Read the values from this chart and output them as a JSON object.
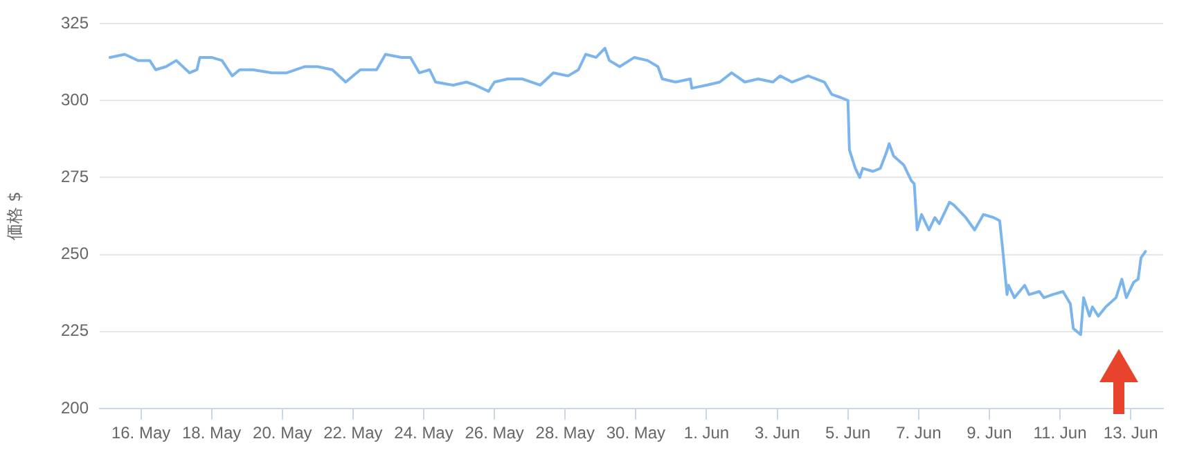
{
  "chart_data": {
    "type": "line",
    "ylabel": "価格 $",
    "color": "#7cb5ec",
    "grid": "y",
    "legend": false,
    "marker": "none",
    "line_style": "solid",
    "x": [
      "--05-15T03:00",
      "--05-15T13:00",
      "--05-15T22:00",
      "--05-16T06:00",
      "--05-16T10:00",
      "--05-16T17:00",
      "--05-17T00:00",
      "--05-17T09:00",
      "--05-17T14:00",
      "--05-17T16:00",
      "--05-18T00:00",
      "--05-18T07:00",
      "--05-18T14:00",
      "--05-18T19:00",
      "--05-19T04:00",
      "--05-19T17:00",
      "--05-20T03:00",
      "--05-20T15:00",
      "--05-21T00:00",
      "--05-21T10:00",
      "--05-21T19:00",
      "--05-22T05:00",
      "--05-22T16:00",
      "--05-22T22:00",
      "--05-23T09:00",
      "--05-23T15:00",
      "--05-23T21:00",
      "--05-24T04:00",
      "--05-24T08:00",
      "--05-24T20:00",
      "--05-25T05:00",
      "--05-25T11:00",
      "--05-25T20:00",
      "--05-26T00:00",
      "--05-26T09:00",
      "--05-26T19:00",
      "--05-27T07:00",
      "--05-27T16:00",
      "--05-28T02:00",
      "--05-28T09:00",
      "--05-28T14:00",
      "--05-28T21:00",
      "--05-29T03:00",
      "--05-29T06:00",
      "--05-29T13:00",
      "--05-29T23:00",
      "--05-30T08:00",
      "--05-30T15:00",
      "--05-30T18:00",
      "--05-31T03:00",
      "--05-31T13:00",
      "--05-31T14:00",
      "--06-01T00:00",
      "--06-01T09:00",
      "--06-01T17:00",
      "--06-02T02:00",
      "--06-02T11:00",
      "--06-02T21:00",
      "--06-03T02:00",
      "--06-03T10:00",
      "--06-03T21:00",
      "--06-04T08:00",
      "--06-04T13:00",
      "--06-04T19:00",
      "--06-05T00:00",
      "--06-05T01:00",
      "--06-05T05:00",
      "--06-05T08:00",
      "--06-05T10:00",
      "--06-05T17:00",
      "--06-05T22:00",
      "--06-06T02:00",
      "--06-06T04:00",
      "--06-06T07:00",
      "--06-06T14:00",
      "--06-06T19:00",
      "--06-06T21:00",
      "--06-06T23:00",
      "--06-07T02:00",
      "--06-07T07:00",
      "--06-07T11:00",
      "--06-07T14:00",
      "--06-07T21:00",
      "--06-08T00:00",
      "--06-08T08:00",
      "--06-08T14:00",
      "--06-08T20:00",
      "--06-09T03:00",
      "--06-09T07:00",
      "--06-09T09:00",
      "--06-09T12:00",
      "--06-09T13:00",
      "--06-09T17:00",
      "--06-10T00:00",
      "--06-10T03:00",
      "--06-10T10:00",
      "--06-10T13:00",
      "--06-10T19:00",
      "--06-11T02:00",
      "--06-11T07:00",
      "--06-11T09:00",
      "--06-11T14:00",
      "--06-11T16:00",
      "--06-11T20:00",
      "--06-11T22:00",
      "--06-12T02:00",
      "--06-12T07:00",
      "--06-12T14:00",
      "--06-12T18:00",
      "--06-12T21:00",
      "--06-13T02:00",
      "--06-13T05:00",
      "--06-13T07:00",
      "--06-13T10:00"
    ],
    "values": [
      314,
      315,
      313,
      313,
      310,
      311,
      313,
      309,
      310,
      314,
      314,
      313,
      308,
      310,
      310,
      309,
      309,
      311,
      311,
      310,
      306,
      310,
      310,
      315,
      314,
      314,
      309,
      310,
      306,
      305,
      306,
      305,
      303,
      306,
      307,
      307,
      305,
      309,
      308,
      310,
      315,
      314,
      317,
      313,
      311,
      314,
      313,
      311,
      307,
      306,
      307,
      304,
      305,
      306,
      309,
      306,
      307,
      306,
      308,
      306,
      308,
      306,
      302,
      301,
      300,
      284,
      278,
      275,
      278,
      277,
      278,
      283,
      286,
      282,
      279,
      274,
      273,
      258,
      263,
      258,
      262,
      260,
      267,
      266,
      262,
      258,
      263,
      262,
      261,
      252,
      237,
      240,
      236,
      240,
      237,
      238,
      236,
      237,
      238,
      234,
      226,
      224,
      236,
      230,
      233,
      230,
      233,
      236,
      242,
      236,
      241,
      242,
      249,
      251
    ],
    "xlim": [
      "--05-14T20:00",
      "--06-13T22:00"
    ],
    "xticks": [
      {
        "value": "--05-16",
        "label": "16. May"
      },
      {
        "value": "--05-18",
        "label": "18. May"
      },
      {
        "value": "--05-20",
        "label": "20. May"
      },
      {
        "value": "--05-22",
        "label": "22. May"
      },
      {
        "value": "--05-24",
        "label": "24. May"
      },
      {
        "value": "--05-26",
        "label": "26. May"
      },
      {
        "value": "--05-28",
        "label": "28. May"
      },
      {
        "value": "--05-30",
        "label": "30. May"
      },
      {
        "value": "--06-01",
        "label": "1. Jun"
      },
      {
        "value": "--06-03",
        "label": "3. Jun"
      },
      {
        "value": "--06-05",
        "label": "5. Jun"
      },
      {
        "value": "--06-07",
        "label": "7. Jun"
      },
      {
        "value": "--06-09",
        "label": "9. Jun"
      },
      {
        "value": "--06-11",
        "label": "11. Jun"
      },
      {
        "value": "--06-13",
        "label": "13. Jun"
      }
    ],
    "ylim": [
      200,
      325
    ],
    "yticks": [
      200,
      225,
      250,
      275,
      300,
      325
    ]
  }
}
